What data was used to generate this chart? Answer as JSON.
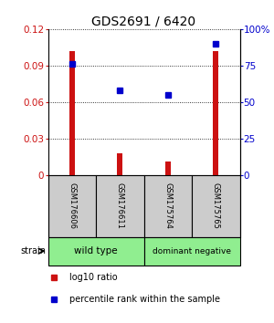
{
  "title": "GDS2691 / 6420",
  "samples": [
    "GSM176606",
    "GSM176611",
    "GSM175764",
    "GSM175765"
  ],
  "log10_ratio": [
    0.102,
    0.018,
    0.011,
    0.102
  ],
  "percentile_rank": [
    76,
    58,
    55,
    90
  ],
  "ylim_left": [
    0,
    0.12
  ],
  "ylim_right": [
    0,
    100
  ],
  "yticks_left": [
    0,
    0.03,
    0.06,
    0.09,
    0.12
  ],
  "ytick_labels_left": [
    "0",
    "0.03",
    "0.06",
    "0.09",
    "0.12"
  ],
  "yticks_right": [
    0,
    25,
    50,
    75,
    100
  ],
  "ytick_labels_right": [
    "0",
    "25",
    "50",
    "75",
    "100%"
  ],
  "bar_color": "#CC1111",
  "dot_color": "#0000CC",
  "background_color": "#ffffff",
  "label_area_color": "#cccccc",
  "group_color": "#90EE90",
  "legend_red_label": "log10 ratio",
  "legend_blue_label": "percentile rank within the sample",
  "bar_width": 0.12
}
